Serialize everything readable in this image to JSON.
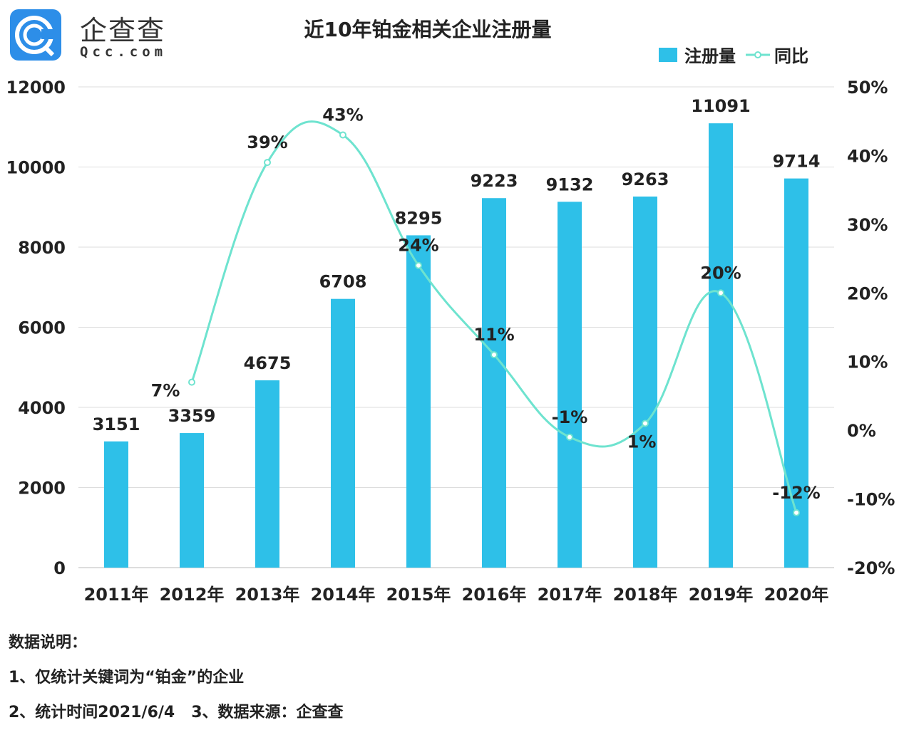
{
  "logo": {
    "cn": "企查查",
    "en": "Qcc.com"
  },
  "chart_data": {
    "type": "bar+line",
    "title": "近10年铂金相关企业注册量",
    "categories": [
      "2011年",
      "2012年",
      "2013年",
      "2014年",
      "2015年",
      "2016年",
      "2017年",
      "2018年",
      "2019年",
      "2020年"
    ],
    "series": [
      {
        "name": "注册量",
        "type": "bar",
        "axis": "left",
        "values": [
          3151,
          3359,
          4675,
          6708,
          8295,
          9223,
          9132,
          9263,
          11091,
          9714
        ],
        "labels": [
          "3151",
          "3359",
          "4675",
          "6708",
          "8295",
          "9223",
          "9132",
          "9263",
          "11091",
          "9714"
        ]
      },
      {
        "name": "同比",
        "type": "line",
        "axis": "right",
        "values": [
          null,
          7,
          39,
          43,
          24,
          11,
          -1,
          1,
          20,
          -12
        ],
        "labels": [
          "",
          "7%",
          "39%",
          "43%",
          "24%",
          "11%",
          "-1%",
          "1%",
          "20%",
          "-12%"
        ]
      }
    ],
    "y_left": {
      "range": [
        0,
        12000
      ],
      "ticks": [
        "0",
        "2000",
        "4000",
        "6000",
        "8000",
        "10000",
        "12000"
      ]
    },
    "y_right": {
      "range": [
        -20,
        50
      ],
      "ticks": [
        "-20%",
        "-10%",
        "0%",
        "10%",
        "20%",
        "30%",
        "40%",
        "50%"
      ]
    },
    "grid": true,
    "legend": "top-right",
    "colors": {
      "bar": "#2ec0e8",
      "line": "#6ee3cf"
    }
  },
  "notes": {
    "heading": "数据说明：",
    "line1": "1、仅统计关键词为“铂金”的企业",
    "line2": "2、统计时间2021/6/4   3、数据来源：企查查"
  }
}
